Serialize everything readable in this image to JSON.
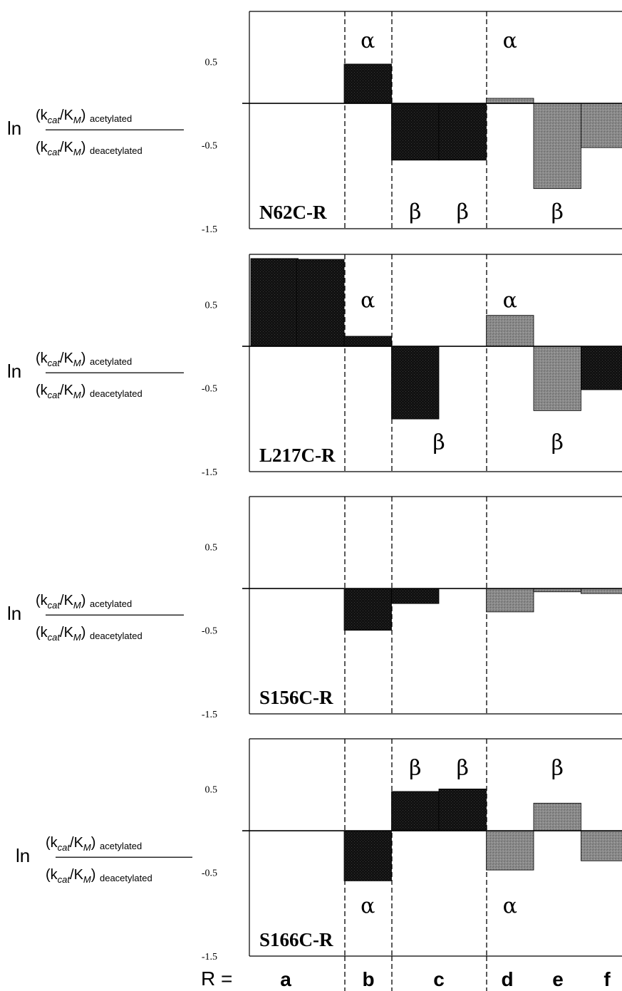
{
  "y_axis_label": {
    "prefix": "ln",
    "numerator": "(k",
    "numerator_sub": "cat",
    "numerator_mid": "/K",
    "numerator_sub2": "M",
    "numerator_close": ")",
    "numerator_tail": "acetylated",
    "denominator_tail": "deacetylated"
  },
  "x_axis": {
    "prefix": "R =",
    "categories": [
      "a",
      "b",
      "c",
      "d",
      "e",
      "f"
    ]
  },
  "colors": {
    "dark": "#111111",
    "gray": "#8a8a8a",
    "axis": "#000000"
  },
  "chart_data": [
    {
      "type": "bar",
      "panel_label": "N62C-R",
      "ylim": [
        -1.5,
        1.1
      ],
      "yticks": [
        "0.5",
        "-0.5",
        "-1.5"
      ],
      "ytick_values": [
        0.5,
        -0.5,
        -1.5
      ],
      "bars": [
        {
          "group": "b",
          "value": 0.47,
          "shade": "dark"
        },
        {
          "group": "c",
          "value": -0.68,
          "shade": "dark"
        },
        {
          "group": "c",
          "value": -0.68,
          "shade": "dark"
        },
        {
          "group": "d",
          "value": 0.06,
          "shade": "gray"
        },
        {
          "group": "e",
          "value": -1.02,
          "shade": "gray"
        },
        {
          "group": "f",
          "value": -0.53,
          "shade": "gray"
        }
      ],
      "annotations": [
        {
          "text": "α",
          "slot": 2,
          "y": 0.75
        },
        {
          "text": "α",
          "slot": 5,
          "y": 0.75
        },
        {
          "text": "β",
          "slot": 3,
          "y": -1.3
        },
        {
          "text": "β",
          "slot": 4,
          "y": -1.3
        },
        {
          "text": "β",
          "slot": 6,
          "y": -1.3
        }
      ]
    },
    {
      "type": "bar",
      "panel_label": "L217C-R",
      "ylim": [
        -1.5,
        1.1
      ],
      "yticks": [
        "0.5",
        "-0.5",
        "-1.5"
      ],
      "ytick_values": [
        0.5,
        -0.5,
        -1.5
      ],
      "bars": [
        {
          "group": "a",
          "value": 1.05,
          "shade": "dark"
        },
        {
          "group": "a",
          "value": 1.04,
          "shade": "dark"
        },
        {
          "group": "b",
          "value": 0.12,
          "shade": "dark"
        },
        {
          "group": "c",
          "value": -0.87,
          "shade": "dark"
        },
        {
          "group": "d",
          "value": 0.37,
          "shade": "gray"
        },
        {
          "group": "e",
          "value": -0.77,
          "shade": "gray"
        },
        {
          "group": "f",
          "value": -0.52,
          "shade": "dark"
        }
      ],
      "annotations": [
        {
          "text": "α",
          "slot": 2,
          "y": 0.55
        },
        {
          "text": "α",
          "slot": 5,
          "y": 0.55
        },
        {
          "text": "β",
          "slot": 3.5,
          "y": -1.15
        },
        {
          "text": "β",
          "slot": 6,
          "y": -1.15
        }
      ]
    },
    {
      "type": "bar",
      "panel_label": "S156C-R",
      "ylim": [
        -1.5,
        1.1
      ],
      "yticks": [
        "0.5",
        "-0.5",
        "-1.5"
      ],
      "ytick_values": [
        0.5,
        -0.5,
        -1.5
      ],
      "bars": [
        {
          "group": "b",
          "value": -0.5,
          "shade": "dark"
        },
        {
          "group": "c",
          "value": -0.18,
          "shade": "dark"
        },
        {
          "group": "d",
          "value": -0.28,
          "shade": "gray"
        },
        {
          "group": "e",
          "value": -0.04,
          "shade": "gray"
        },
        {
          "group": "f",
          "value": -0.06,
          "shade": "gray"
        }
      ],
      "annotations": []
    },
    {
      "type": "bar",
      "panel_label": "S166C-R",
      "ylim": [
        -1.5,
        1.1
      ],
      "yticks": [
        "0.5",
        "-0.5",
        "-1.5"
      ],
      "ytick_values": [
        0.5,
        -0.5,
        -1.5
      ],
      "bars": [
        {
          "group": "b",
          "value": -0.6,
          "shade": "dark"
        },
        {
          "group": "c",
          "value": 0.47,
          "shade": "dark"
        },
        {
          "group": "c",
          "value": 0.5,
          "shade": "dark"
        },
        {
          "group": "d",
          "value": -0.47,
          "shade": "gray"
        },
        {
          "group": "e",
          "value": 0.33,
          "shade": "gray"
        },
        {
          "group": "f",
          "value": -0.36,
          "shade": "gray"
        }
      ],
      "annotations": [
        {
          "text": "β",
          "slot": 3,
          "y": 0.75
        },
        {
          "text": "β",
          "slot": 4,
          "y": 0.75
        },
        {
          "text": "β",
          "slot": 6,
          "y": 0.75
        },
        {
          "text": "α",
          "slot": 2,
          "y": -0.9
        },
        {
          "text": "α",
          "slot": 5,
          "y": -0.9
        }
      ]
    }
  ]
}
